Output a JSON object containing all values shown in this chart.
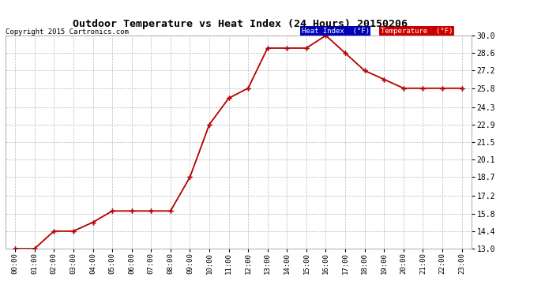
{
  "title": "Outdoor Temperature vs Heat Index (24 Hours) 20150206",
  "copyright": "Copyright 2015 Cartronics.com",
  "background_color": "#ffffff",
  "plot_bg_color": "#ffffff",
  "grid_color": "#bbbbbb",
  "hours": [
    "00:00",
    "01:00",
    "02:00",
    "03:00",
    "04:00",
    "05:00",
    "06:00",
    "07:00",
    "08:00",
    "09:00",
    "10:00",
    "11:00",
    "12:00",
    "13:00",
    "14:00",
    "15:00",
    "16:00",
    "17:00",
    "18:00",
    "19:00",
    "20:00",
    "21:00",
    "22:00",
    "23:00"
  ],
  "temperature": [
    13.0,
    13.0,
    14.4,
    14.4,
    15.1,
    16.0,
    16.0,
    16.0,
    16.0,
    18.7,
    22.9,
    25.0,
    25.8,
    29.0,
    29.0,
    29.0,
    30.0,
    28.6,
    27.2,
    26.5,
    25.8,
    25.8,
    25.8,
    25.8
  ],
  "heat_index": [
    13.0,
    13.0,
    14.4,
    14.4,
    15.1,
    16.0,
    16.0,
    16.0,
    16.0,
    18.7,
    22.9,
    25.0,
    25.8,
    29.0,
    29.0,
    29.0,
    30.0,
    28.6,
    27.2,
    26.5,
    25.8,
    25.8,
    25.8,
    25.8
  ],
  "temp_color": "#cc0000",
  "heat_color": "#000000",
  "ylim_min": 13.0,
  "ylim_max": 30.0,
  "ytick_labels": [
    "13.0",
    "14.4",
    "15.8",
    "17.2",
    "18.7",
    "20.1",
    "21.5",
    "22.9",
    "24.3",
    "25.8",
    "27.2",
    "28.6",
    "30.0"
  ],
  "ytick_values": [
    13.0,
    14.4,
    15.8,
    17.2,
    18.7,
    20.1,
    21.5,
    22.9,
    24.3,
    25.8,
    27.2,
    28.6,
    30.0
  ],
  "legend_heat_bg": "#0000bb",
  "legend_temp_bg": "#cc0000",
  "legend_text_color": "#ffffff",
  "legend_heat_label": "Heat Index  (°F)",
  "legend_temp_label": "Temperature  (°F)"
}
